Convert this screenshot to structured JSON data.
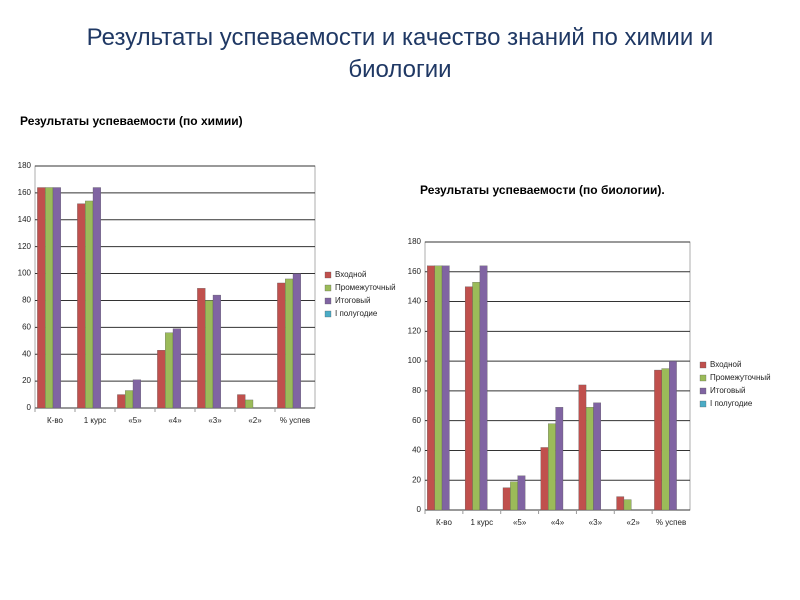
{
  "title": "Результаты успеваемости и качество знаний по химии и биологии",
  "chart_data": [
    {
      "type": "bar",
      "title": "Результаты успеваемости (по химии)",
      "categories": [
        "К-во",
        "1 курс",
        "«5»",
        "«4»",
        "«3»",
        "«2»",
        "% успев"
      ],
      "series": [
        {
          "name": "Входной",
          "color": "#c0504d",
          "values": [
            164,
            152,
            10,
            43,
            89,
            10,
            93
          ]
        },
        {
          "name": "Промежуточный",
          "color": "#9bbb59",
          "values": [
            164,
            154,
            13,
            56,
            80,
            6,
            96
          ]
        },
        {
          "name": "Итоговый",
          "color": "#8064a2",
          "values": [
            164,
            164,
            21,
            59,
            84,
            null,
            100
          ]
        },
        {
          "name": "I полугодие",
          "color": "#4bacc6",
          "values": [
            null,
            null,
            null,
            null,
            null,
            null,
            null
          ]
        }
      ],
      "ylim": [
        0,
        180
      ],
      "yticks": [
        0,
        20,
        40,
        60,
        80,
        100,
        120,
        140,
        160,
        180
      ],
      "grid": true,
      "legend": "right"
    },
    {
      "type": "bar",
      "title": "Результаты успеваемости  (по биологии).",
      "categories": [
        "К-во",
        "1 курс",
        "«5»",
        "«4»",
        "«3»",
        "«2»",
        "% успев"
      ],
      "series": [
        {
          "name": "Входной",
          "color": "#c0504d",
          "values": [
            164,
            150,
            15,
            42,
            84,
            9,
            94
          ]
        },
        {
          "name": "Промежуточный",
          "color": "#9bbb59",
          "values": [
            164,
            153,
            19,
            58,
            69,
            7,
            95
          ]
        },
        {
          "name": "Итоговый",
          "color": "#8064a2",
          "values": [
            164,
            164,
            23,
            69,
            72,
            null,
            100
          ]
        },
        {
          "name": "I полугодие",
          "color": "#4bacc6",
          "values": [
            null,
            null,
            null,
            null,
            null,
            null,
            null
          ]
        }
      ],
      "ylim": [
        0,
        180
      ],
      "yticks": [
        0,
        20,
        40,
        60,
        80,
        100,
        120,
        140,
        160,
        180
      ],
      "grid": true,
      "legend": "right"
    }
  ]
}
